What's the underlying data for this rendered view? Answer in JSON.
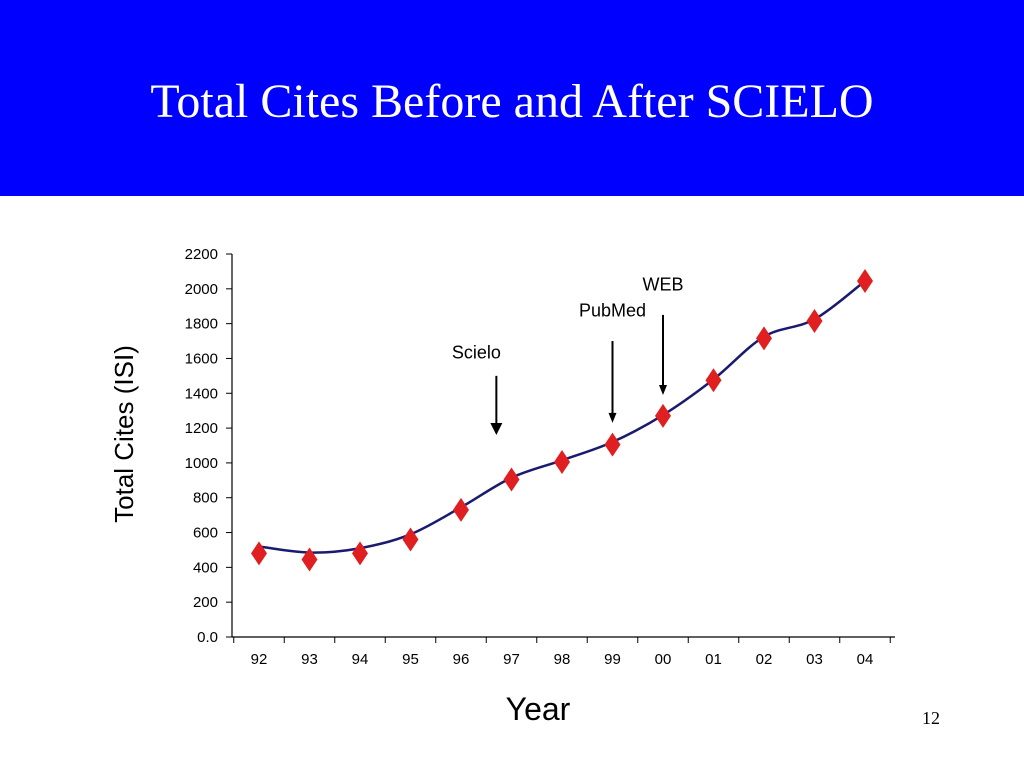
{
  "slide": {
    "title": "Total Cites Before and After SCIELO",
    "page_number": "12",
    "background_color": "#0000ff"
  },
  "chart_data": {
    "type": "line",
    "title": "",
    "xlabel": "Year",
    "ylabel": "Total Cites  (ISI)",
    "categories": [
      "92",
      "93",
      "94",
      "95",
      "96",
      "97",
      "98",
      "99",
      "00",
      "01",
      "02",
      "03",
      "04"
    ],
    "series": [
      {
        "values": [
          480,
          445,
          480,
          560,
          730,
          905,
          1005,
          1105,
          1270,
          1475,
          1715,
          1815,
          2045
        ],
        "line_color": "#1a1a6e",
        "marker_color": "#e02020",
        "marker": "diamond"
      }
    ],
    "line_values": [
      520,
      485,
      510,
      590,
      745,
      915,
      1015,
      1120,
      1275,
      1480,
      1725,
      1825,
      2045
    ],
    "ylim": [
      0,
      2200
    ],
    "yticks": [
      0,
      200,
      400,
      600,
      800,
      1000,
      1200,
      1400,
      1600,
      1800,
      2000,
      2200
    ],
    "ytick_labels": [
      "0.0",
      "200",
      "400",
      "600",
      "800",
      "1000",
      "1200",
      "1400",
      "1600",
      "1800",
      "2000",
      "2200"
    ],
    "grid": false,
    "annotations": [
      {
        "label": "Scielo",
        "x": "96.7",
        "y_text": 1600,
        "arrow_from": 1500,
        "arrow_to": 1160
      },
      {
        "label": "PubMed",
        "x": "99",
        "y_text": 1840,
        "arrow_from": 1700,
        "arrow_to": 1230
      },
      {
        "label": "WEB",
        "x": "00",
        "y_text": 1990,
        "arrow_from": 1850,
        "arrow_to": 1390
      }
    ]
  }
}
